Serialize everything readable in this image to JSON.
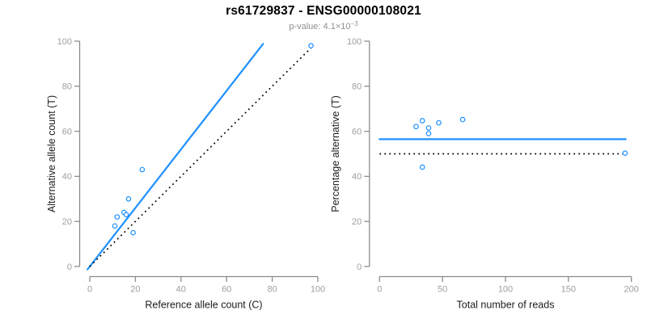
{
  "figure": {
    "title": "rs61729837 - ENSG00000108021",
    "subtitle": {
      "prefix": "p-value: ",
      "mantissa": "4.1",
      "times": "×",
      "base": "10",
      "exponent": "−3"
    }
  },
  "colors": {
    "accent_blue": "#1E90FF",
    "identity_black": "#000000",
    "axis_line": "#8c8c8c",
    "tick_label": "#9e9e9e",
    "axis_title": "#1c1c1c",
    "title": "#000000",
    "subtitle": "#8f8f8f"
  },
  "chart_data": [
    {
      "id": "allele-count-scatter",
      "type": "scatter",
      "xlabel": "Reference allele count (C)",
      "ylabel": "Alternative allele count (T)",
      "xlim": [
        0,
        100
      ],
      "ylim": [
        0,
        100
      ],
      "xticks": [
        0,
        20,
        40,
        60,
        80,
        100
      ],
      "yticks": [
        0,
        20,
        40,
        60,
        80,
        100
      ],
      "grid": false,
      "point_color": "#1E90FF",
      "points": [
        [
          11,
          18
        ],
        [
          12,
          22
        ],
        [
          15,
          24
        ],
        [
          16,
          23
        ],
        [
          17,
          30
        ],
        [
          19,
          15
        ],
        [
          23,
          43
        ],
        [
          97,
          98
        ]
      ],
      "lines": [
        {
          "name": "regression-line",
          "style": "solid",
          "color": "#1E90FF",
          "slope": 1.3,
          "intercept": 0,
          "x_range": [
            -1,
            76
          ]
        },
        {
          "name": "identity-line",
          "style": "dotted",
          "color": "#000000",
          "slope": 1.0,
          "intercept": 0,
          "x_range": [
            0,
            98
          ]
        }
      ]
    },
    {
      "id": "percentage-vs-reads-scatter",
      "type": "scatter",
      "xlabel": "Total number of reads",
      "ylabel": "Percentage alternative (T)",
      "xlim": [
        0,
        200
      ],
      "ylim": [
        0,
        100
      ],
      "xticks": [
        0,
        50,
        100,
        150,
        200
      ],
      "yticks": [
        0,
        20,
        40,
        60,
        80,
        100
      ],
      "grid": false,
      "point_color": "#1E90FF",
      "points": [
        [
          29,
          62.1
        ],
        [
          34,
          64.7
        ],
        [
          34,
          44.1
        ],
        [
          39,
          61.5
        ],
        [
          39,
          59.0
        ],
        [
          47,
          63.8
        ],
        [
          66,
          65.2
        ],
        [
          195,
          50.3
        ]
      ],
      "lines": [
        {
          "name": "mean-percentage-line",
          "style": "solid",
          "color": "#1E90FF",
          "slope": 0,
          "intercept": 56.5,
          "x_range": [
            0,
            195.5
          ]
        },
        {
          "name": "fifty-percent-line",
          "style": "dotted",
          "color": "#000000",
          "slope": 0,
          "intercept": 50,
          "x_range": [
            0,
            193
          ]
        }
      ]
    }
  ]
}
